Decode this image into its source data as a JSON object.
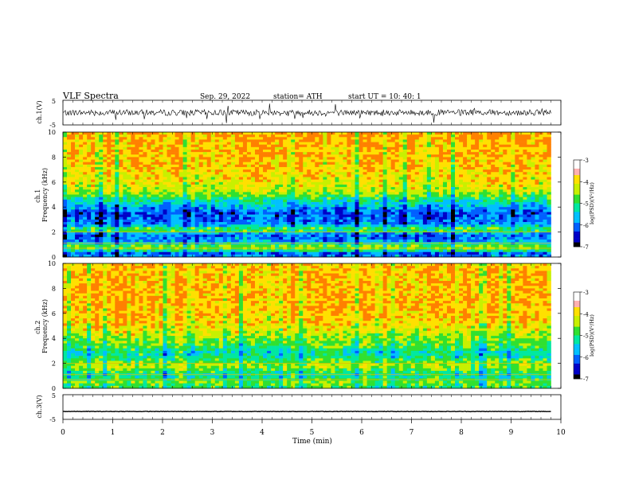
{
  "header": {
    "title": "VLF  Spectra",
    "date": "Sep. 29, 2022",
    "station": "station= ATH",
    "start": "start  UT  =    10: 40: 1"
  },
  "colors": {
    "spectrogram_scale": [
      "#000000",
      "#0000c8",
      "#0060ff",
      "#00c0ff",
      "#00e8a0",
      "#30e030",
      "#c8f000",
      "#ffe000",
      "#ff8000",
      "#ff2000",
      "#ffffff"
    ]
  },
  "chart_data": [
    {
      "type": "line",
      "name": "ch1-waveform",
      "ylabel": "ch.1(V)",
      "ylim": [
        -5,
        5
      ],
      "yticks": [
        "5",
        "-5"
      ],
      "xlim": [
        0,
        10
      ],
      "x_extent": [
        0,
        9.8
      ],
      "baseline": 0,
      "amplitude": 1.2,
      "grid": false
    },
    {
      "type": "heatmap",
      "name": "ch1-spectrogram",
      "ylabel": "ch.1\nFrequency  (kHz)",
      "ylim": [
        0,
        10
      ],
      "yticks": [
        "0",
        "2",
        "4",
        "6",
        "8",
        "10"
      ],
      "xlim": [
        0,
        10
      ],
      "x_extent": [
        0,
        9.8
      ],
      "colorbar": {
        "label": "log(PSD)(V²/Hz)",
        "ticks": [
          "-3",
          "-4",
          "-5",
          "-6",
          "-7"
        ],
        "range": [
          -7,
          -3
        ]
      },
      "profile": [
        {
          "f": 0.0,
          "v": -5.2
        },
        {
          "f": 0.2,
          "v": -6.8
        },
        {
          "f": 0.4,
          "v": -5.5
        },
        {
          "f": 0.8,
          "v": -4.4
        },
        {
          "f": 1.2,
          "v": -5.8
        },
        {
          "f": 1.8,
          "v": -6.2
        },
        {
          "f": 2.2,
          "v": -4.6
        },
        {
          "f": 2.6,
          "v": -6.0
        },
        {
          "f": 3.5,
          "v": -6.3
        },
        {
          "f": 4.5,
          "v": -5.3
        },
        {
          "f": 5.2,
          "v": -4.4
        },
        {
          "f": 6.0,
          "v": -4.1
        },
        {
          "f": 7.0,
          "v": -3.9
        },
        {
          "f": 8.0,
          "v": -3.8
        },
        {
          "f": 10.0,
          "v": -3.7
        }
      ]
    },
    {
      "type": "heatmap",
      "name": "ch2-spectrogram",
      "ylabel": "ch.2\nFrequency  (kHz)",
      "ylim": [
        0,
        10
      ],
      "yticks": [
        "0",
        "2",
        "4",
        "6",
        "8",
        "10"
      ],
      "xlim": [
        0,
        10
      ],
      "x_extent": [
        0,
        9.8
      ],
      "colorbar": {
        "label": "log(PSD)(V²/Hz)",
        "ticks": [
          "-3",
          "-4",
          "-5",
          "-6",
          "-7"
        ],
        "range": [
          -7,
          -3
        ]
      },
      "profile": [
        {
          "f": 0.0,
          "v": -5.0
        },
        {
          "f": 0.5,
          "v": -4.6
        },
        {
          "f": 1.0,
          "v": -5.3
        },
        {
          "f": 1.8,
          "v": -4.3
        },
        {
          "f": 2.2,
          "v": -4.8
        },
        {
          "f": 2.8,
          "v": -5.3
        },
        {
          "f": 3.4,
          "v": -4.8
        },
        {
          "f": 4.2,
          "v": -4.4
        },
        {
          "f": 5.2,
          "v": -3.9
        },
        {
          "f": 6.5,
          "v": -3.7
        },
        {
          "f": 8.0,
          "v": -3.7
        },
        {
          "f": 10.0,
          "v": -3.8
        }
      ]
    },
    {
      "type": "line",
      "name": "ch3-waveform",
      "ylabel": "ch.3(V)",
      "ylim": [
        -5,
        5
      ],
      "yticks": [
        "5",
        "-5"
      ],
      "xlim": [
        0,
        10
      ],
      "x_extent": [
        0,
        9.8
      ],
      "baseline": -1.8,
      "amplitude": 0.25,
      "grid": false
    }
  ],
  "xaxis": {
    "label": "Time  (min)",
    "ticks": [
      "0",
      "1",
      "2",
      "3",
      "4",
      "5",
      "6",
      "7",
      "8",
      "9",
      "10"
    ]
  }
}
